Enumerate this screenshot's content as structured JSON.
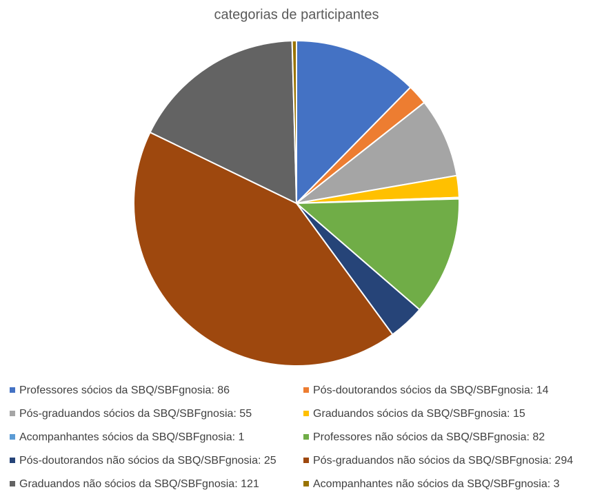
{
  "chart_data": {
    "type": "pie",
    "title": "categorias de participantes",
    "categories": [
      "Professores sócios da SBQ/SBFgnosia: 86",
      "Pós-doutorandos sócios da SBQ/SBFgnosia: 14",
      "Pós-graduandos sócios da SBQ/SBFgnosia: 55",
      "Graduandos sócios da SBQ/SBFgnosia: 15",
      "Acompanhantes sócios da SBQ/SBFgnosia: 1",
      "Professores não sócios da SBQ/SBFgnosia: 82",
      "Pós-doutorandos não sócios da SBQ/SBFgnosia: 25",
      "Pós-graduandos não sócios da SBQ/SBFgnosia: 294",
      "Graduandos não sócios da SBQ/SBFgnosia: 121",
      "Acompanhantes não sócios da SBQ/SBFgnosia: 3"
    ],
    "values": [
      86,
      14,
      55,
      15,
      1,
      82,
      25,
      294,
      121,
      3
    ],
    "colors": [
      "#4472c4",
      "#ed7d31",
      "#a5a5a5",
      "#ffc000",
      "#5b9bd5",
      "#70ad47",
      "#264478",
      "#9e480e",
      "#636363",
      "#997300"
    ],
    "legend": "bottom"
  }
}
